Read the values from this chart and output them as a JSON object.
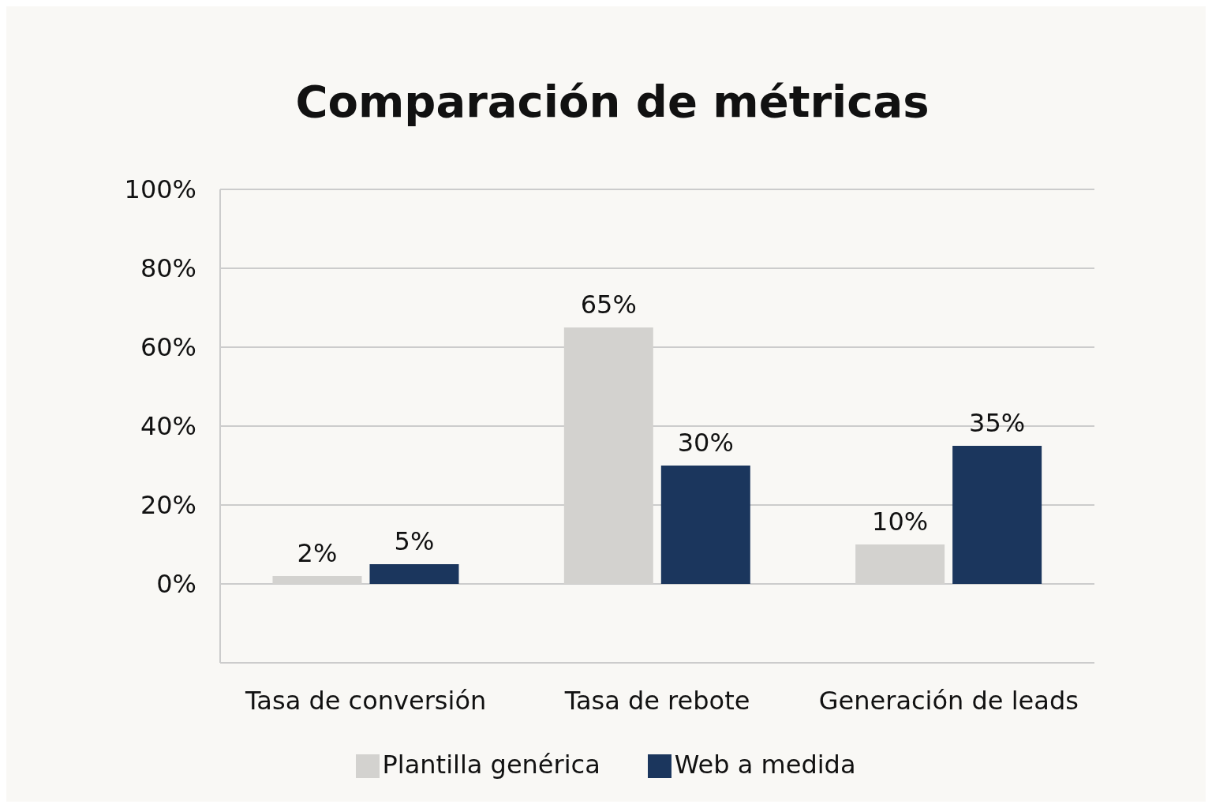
{
  "chart_data": {
    "type": "bar",
    "title": "Comparación de métricas",
    "categories": [
      "Tasa de conversión",
      "Tasa de rebote",
      "Generación de leads"
    ],
    "series": [
      {
        "name": "Plantilla genérica",
        "color": "#d3d2cf",
        "values": [
          2,
          65,
          10
        ],
        "value_labels": [
          "2%",
          "65%",
          "10%"
        ]
      },
      {
        "name": "Web a medida",
        "color": "#1b365d",
        "values": [
          5,
          30,
          35
        ],
        "value_labels": [
          "5%",
          "30%",
          "35%"
        ]
      }
    ],
    "ylim": [
      -20,
      100
    ],
    "yticks": [
      {
        "value": 0,
        "label": "0%"
      },
      {
        "value": 20,
        "label": "20%"
      },
      {
        "value": 40,
        "label": "40%"
      },
      {
        "value": 60,
        "label": "60%"
      },
      {
        "value": 80,
        "label": "80%"
      },
      {
        "value": 100,
        "label": "100%"
      }
    ],
    "grid": "y",
    "legend": "bottom"
  }
}
